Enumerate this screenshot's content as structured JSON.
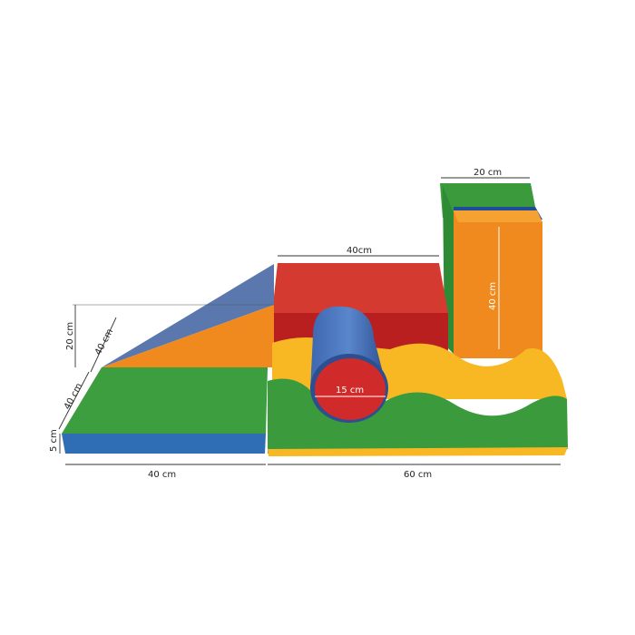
{
  "image": {
    "subject": "soft play foam blocks set",
    "colors": {
      "green": "#3a9a3c",
      "blue": "#2f6db5",
      "slate": "#5a78ad",
      "orange": "#f08a1e",
      "red": "#d22a26",
      "yellow": "#f7b824"
    }
  },
  "dimensions": {
    "ramp_height": "20 cm",
    "ramp_depth": "40 cm",
    "mat_depth": "40 cm",
    "mat_thickness": "5 cm",
    "mat_width": "40 cm",
    "wave_width": "60 cm",
    "cube_width": "40cm",
    "tall_block_width": "20 cm",
    "tall_block_height": "40 cm",
    "cylinder_diameter": "15 cm"
  }
}
